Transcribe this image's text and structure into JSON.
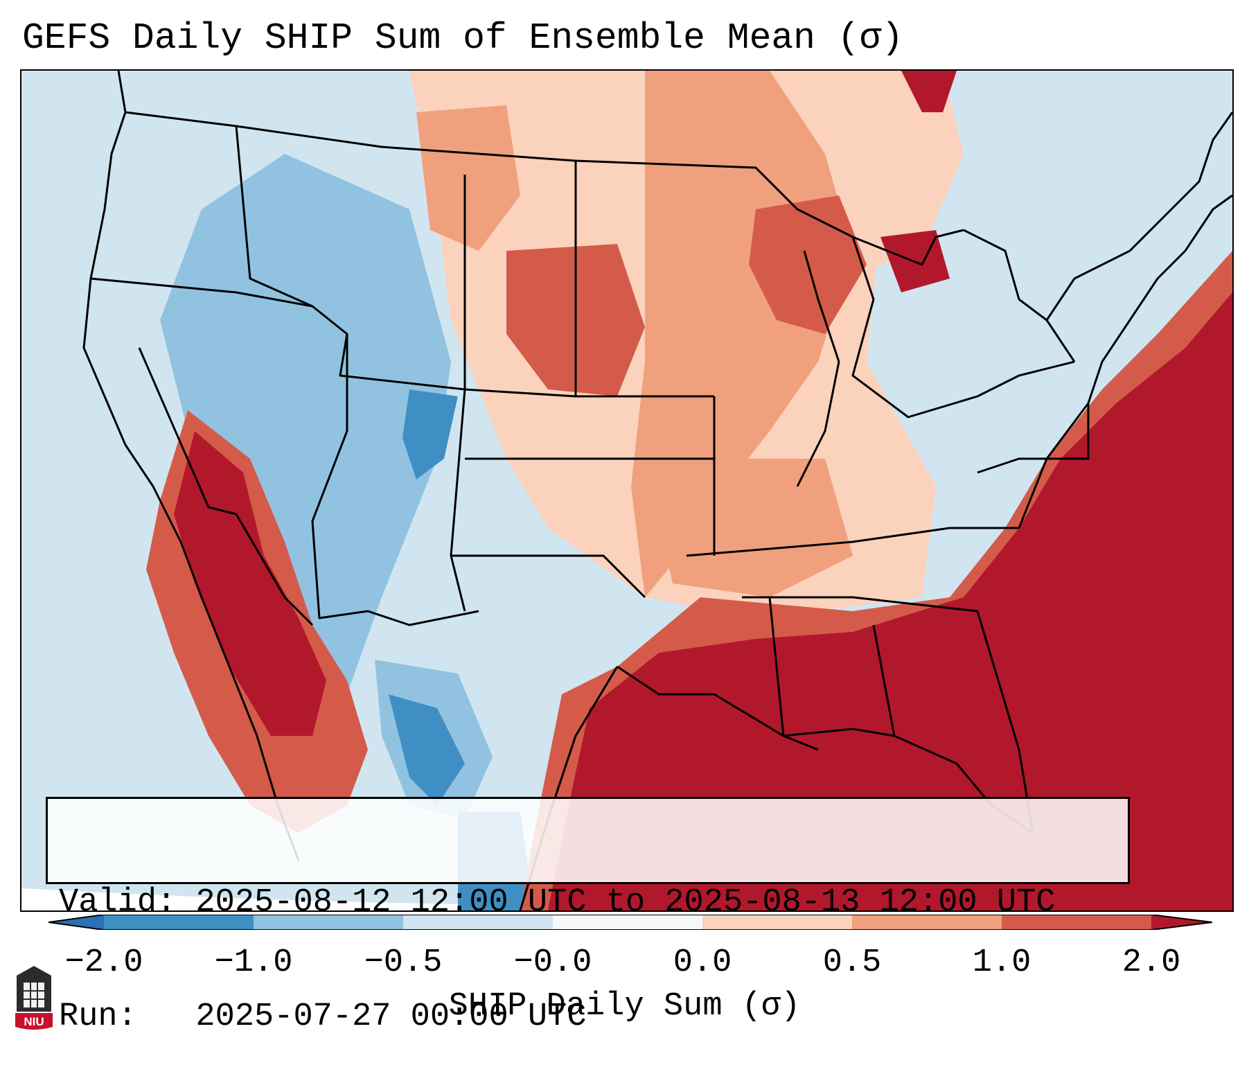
{
  "title": "GEFS Daily SHIP Sum of Ensemble Mean (σ)",
  "info": {
    "valid_line": "Valid: 2025-08-12 12:00 UTC to 2025-08-13 12:00 UTC",
    "run_line": "Run:   2025-07-27 00:00 UTC"
  },
  "colorbar": {
    "label": "SHIP Daily Sum (σ)",
    "ticks": [
      "−2.0",
      "−1.0",
      "−0.5",
      "−0.0",
      "0.0",
      "0.5",
      "1.0",
      "2.0"
    ],
    "bins": [
      {
        "range": "< -2.0",
        "color": "#2c6fb5"
      },
      {
        "range": "-2.0 to -1.0",
        "color": "#3f8fc5"
      },
      {
        "range": "-1.0 to -0.5",
        "color": "#91c3e0"
      },
      {
        "range": "-0.5 to -0.0",
        "color": "#d1e5f0"
      },
      {
        "range": "-0.0 to 0.0",
        "color": "#f7f7f7"
      },
      {
        "range": "0.0 to 0.5",
        "color": "#fbd2bc"
      },
      {
        "range": "0.5 to 1.0",
        "color": "#f0a07d"
      },
      {
        "range": "1.0 to 2.0",
        "color": "#d45b4a"
      },
      {
        "range": "> 2.0",
        "color": "#b2182b"
      }
    ],
    "extend": "both"
  },
  "logo": {
    "text": "NIU"
  }
}
